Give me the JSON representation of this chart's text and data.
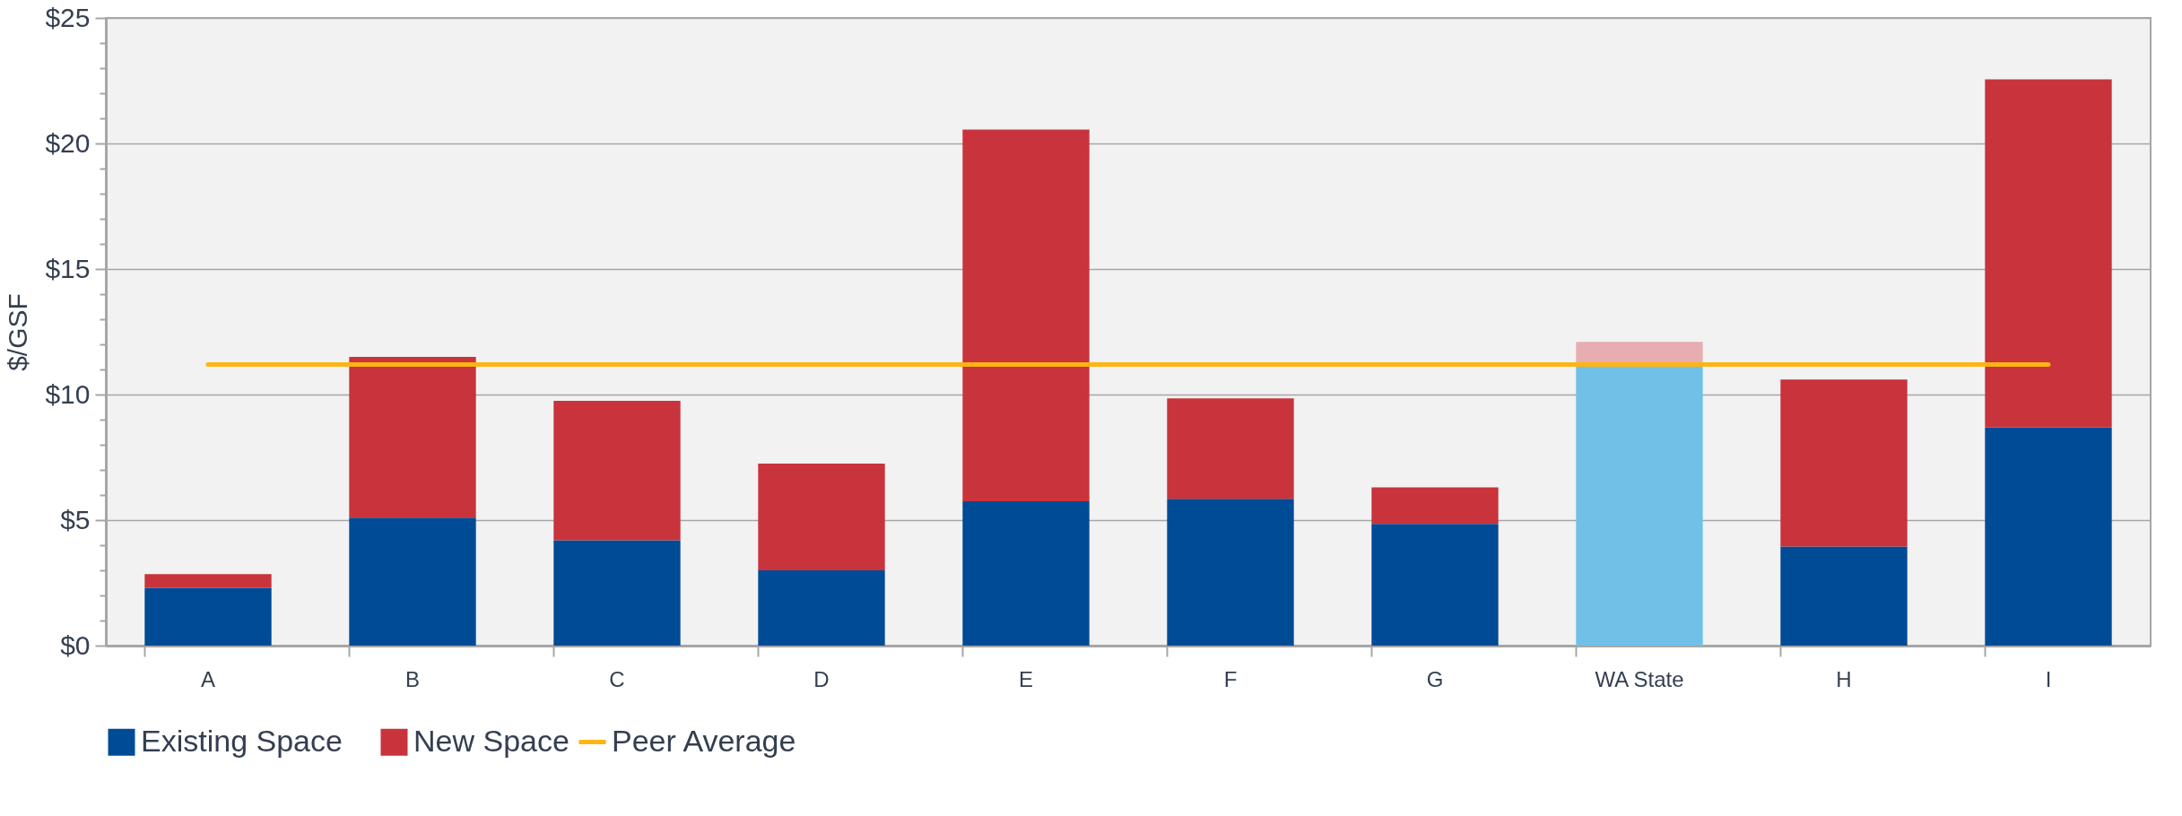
{
  "chart_data": {
    "type": "bar",
    "stacked": true,
    "ylabel": "$/GSF",
    "categories": [
      "A",
      "B",
      "C",
      "D",
      "E",
      "F",
      "G",
      "WA State",
      "H",
      "I"
    ],
    "series": [
      {
        "name": "Existing Space",
        "color": "#004b96",
        "colors": [
          "#004b96",
          "#004b96",
          "#004b96",
          "#004b96",
          "#004b96",
          "#004b96",
          "#004b96",
          "#71c0e8",
          "#004b96",
          "#004b96"
        ],
        "values": [
          2.3,
          5.1,
          4.2,
          3.0,
          5.75,
          5.85,
          4.85,
          11.2,
          3.95,
          8.7
        ]
      },
      {
        "name": "New Space",
        "color": "#c9333b",
        "colors": [
          "#c9333b",
          "#c9333b",
          "#c9333b",
          "#c9333b",
          "#c9333b",
          "#c9333b",
          "#c9333b",
          "#e8adb0",
          "#c9333b",
          "#c9333b"
        ],
        "values": [
          0.55,
          6.4,
          5.55,
          4.25,
          14.8,
          4.0,
          1.45,
          0.9,
          6.65,
          13.85
        ]
      },
      {
        "name": "Peer Average",
        "type": "line",
        "color": "#fdb515",
        "values": [
          11.2,
          11.2,
          11.2,
          11.2,
          11.2,
          11.2,
          11.2,
          11.2,
          11.2,
          11.2
        ]
      }
    ],
    "ylim": [
      0,
      25
    ],
    "yticks": [
      {
        "value": 0,
        "label": "$0"
      },
      {
        "value": 1,
        "label": null
      },
      {
        "value": 2,
        "label": null
      },
      {
        "value": 3,
        "label": null
      },
      {
        "value": 4,
        "label": null
      },
      {
        "value": 5,
        "label": "$5"
      },
      {
        "value": 6,
        "label": null
      },
      {
        "value": 7,
        "label": null
      },
      {
        "value": 8,
        "label": null
      },
      {
        "value": 9,
        "label": null
      },
      {
        "value": 10,
        "label": "$10"
      },
      {
        "value": 11,
        "label": null
      },
      {
        "value": 12,
        "label": null
      },
      {
        "value": 13,
        "label": null
      },
      {
        "value": 14,
        "label": null
      },
      {
        "value": 15,
        "label": "$15"
      },
      {
        "value": 16,
        "label": null
      },
      {
        "value": 17,
        "label": null
      },
      {
        "value": 18,
        "label": null
      },
      {
        "value": 19,
        "label": null
      },
      {
        "value": 20,
        "label": "$20"
      },
      {
        "value": 21,
        "label": null
      },
      {
        "value": 22,
        "label": null
      },
      {
        "value": 23,
        "label": null
      },
      {
        "value": 24,
        "label": null
      },
      {
        "value": 25,
        "label": "$25"
      }
    ],
    "grid": "y",
    "legend": "bottom"
  }
}
